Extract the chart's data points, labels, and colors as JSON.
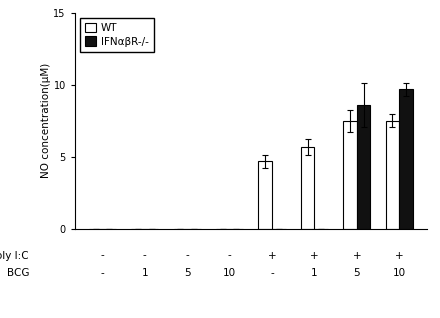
{
  "groups": 8,
  "x_labels_polyic": [
    "-",
    "-",
    "-",
    "-",
    "+",
    "+",
    "+",
    "+"
  ],
  "x_labels_bcg": [
    "-",
    "1",
    "5",
    "10",
    "-",
    "1",
    "5",
    "10"
  ],
  "wt_values": [
    0.0,
    0.0,
    0.0,
    0.0,
    4.7,
    5.7,
    7.5,
    7.5
  ],
  "wt_errors": [
    0.0,
    0.0,
    0.0,
    0.0,
    0.45,
    0.55,
    0.75,
    0.45
  ],
  "ko_values": [
    0.0,
    0.0,
    0.0,
    0.0,
    0.0,
    0.0,
    8.6,
    9.7
  ],
  "ko_errors": [
    0.0,
    0.0,
    0.0,
    0.0,
    0.0,
    0.0,
    1.5,
    0.45
  ],
  "wt_color": "#ffffff",
  "ko_color": "#111111",
  "bar_edge_color": "#000000",
  "ylabel": "NO concentration(μM)",
  "ylim": [
    0,
    15
  ],
  "yticks": [
    0,
    5,
    10,
    15
  ],
  "legend_wt": "WT",
  "legend_ko": "IFNαβR-/-",
  "bar_width": 0.32,
  "axis_fontsize": 7.5,
  "tick_fontsize": 7,
  "legend_fontsize": 7.5,
  "label_fontsize": 7.5,
  "background_color": "#ffffff",
  "fig_background": "#ffffff"
}
